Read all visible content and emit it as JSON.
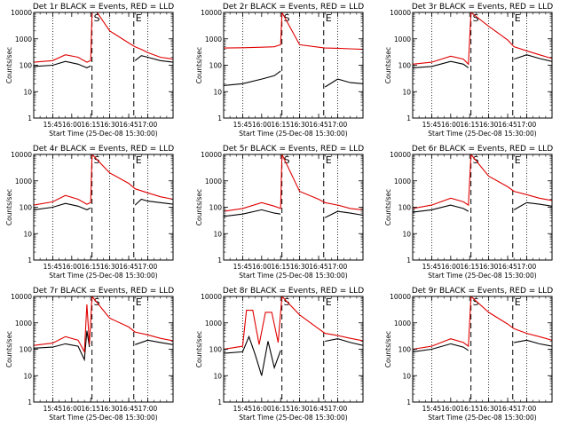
{
  "chart_data": {
    "type": "line",
    "y_scale": "log",
    "ylim": [
      1,
      10000
    ],
    "xlim": [
      "15:30",
      "17:20"
    ],
    "x_tick_labels": [
      "15:45",
      "16:00",
      "16:15",
      "16:30",
      "16:45",
      "17:00"
    ],
    "y_tick_labels": [
      "1",
      "10",
      "100",
      "1000",
      "10000"
    ],
    "ylabel": "Counts/sec",
    "xlabel": "Start Time (25-Dec-08 15:30:00)",
    "colors": {
      "events": "#000000",
      "lld": "#e00000"
    },
    "panels": [
      {
        "title": "Det 1r BLACK = Events, RED = LLD",
        "markers": [
          {
            "label": "S",
            "time": "16:16"
          },
          {
            "label": "E",
            "time": "16:49"
          }
        ],
        "series": [
          {
            "name": "Events",
            "time": [
              "15:30",
              "15:45",
              "15:55",
              "16:05",
              "16:12",
              "16:15",
              "16:16",
              "16:20",
              "16:30",
              "16:45",
              "16:50",
              "16:55",
              "17:00",
              "17:10",
              "17:20"
            ],
            "values": [
              90,
              100,
              140,
              110,
              80,
              95,
              null,
              null,
              null,
              null,
              150,
              230,
              200,
              150,
              130
            ]
          },
          {
            "name": "LLD",
            "time": [
              "15:30",
              "15:45",
              "15:55",
              "16:05",
              "16:12",
              "16:15",
              "16:16",
              "16:20",
              "16:30",
              "16:45",
              "16:50",
              "16:55",
              "17:00",
              "17:10",
              "17:20"
            ],
            "values": [
              130,
              150,
              250,
              200,
              130,
              150,
              10000,
              10000,
              2000,
              700,
              500,
              400,
              300,
              200,
              170
            ]
          }
        ]
      },
      {
        "title": "Det 2r BLACK = Events, RED = LLD",
        "markers": [
          {
            "label": "S",
            "time": "16:16"
          },
          {
            "label": "E",
            "time": "16:49"
          }
        ],
        "series": [
          {
            "name": "Events",
            "time": [
              "15:30",
              "15:45",
              "16:00",
              "16:10",
              "16:15",
              "16:45",
              "16:50",
              "17:00",
              "17:10",
              "17:20"
            ],
            "values": [
              17,
              20,
              30,
              40,
              60,
              null,
              15,
              30,
              22,
              20
            ]
          },
          {
            "name": "LLD",
            "time": [
              "15:30",
              "15:45",
              "16:00",
              "16:10",
              "16:15",
              "16:16",
              "16:30",
              "16:45",
              "16:50",
              "17:00",
              "17:10",
              "17:20"
            ],
            "values": [
              450,
              460,
              480,
              500,
              600,
              10000,
              600,
              480,
              450,
              440,
              420,
              400
            ]
          }
        ]
      },
      {
        "title": "Det 3r BLACK = Events, RED = LLD",
        "markers": [
          {
            "label": "S",
            "time": "16:16"
          },
          {
            "label": "E",
            "time": "16:49"
          }
        ],
        "series": [
          {
            "name": "Events",
            "time": [
              "15:30",
              "15:45",
              "16:00",
              "16:10",
              "16:14",
              "16:20",
              "16:30",
              "16:45",
              "16:50",
              "17:00",
              "17:10",
              "17:20"
            ],
            "values": [
              80,
              90,
              140,
              110,
              80,
              null,
              null,
              null,
              170,
              250,
              180,
              140
            ]
          },
          {
            "name": "LLD",
            "time": [
              "15:30",
              "15:45",
              "16:00",
              "16:10",
              "16:14",
              "16:16",
              "16:30",
              "16:45",
              "16:50",
              "17:00",
              "17:10",
              "17:20"
            ],
            "values": [
              110,
              130,
              220,
              170,
              110,
              10000,
              3000,
              900,
              500,
              350,
              250,
              180
            ]
          }
        ]
      },
      {
        "title": "Det 4r BLACK = Events, RED = LLD",
        "markers": [
          {
            "label": "S",
            "time": "16:16"
          },
          {
            "label": "E",
            "time": "16:49"
          }
        ],
        "series": [
          {
            "name": "Events",
            "time": [
              "15:30",
              "15:45",
              "15:55",
              "16:05",
              "16:12",
              "16:15",
              "16:45",
              "16:50",
              "16:55",
              "17:00",
              "17:10",
              "17:20"
            ],
            "values": [
              80,
              100,
              140,
              110,
              80,
              95,
              null,
              120,
              200,
              170,
              150,
              130
            ]
          },
          {
            "name": "LLD",
            "time": [
              "15:30",
              "15:45",
              "15:55",
              "16:05",
              "16:12",
              "16:15",
              "16:16",
              "16:30",
              "16:45",
              "16:50",
              "17:00",
              "17:10",
              "17:20"
            ],
            "values": [
              120,
              160,
              280,
              200,
              130,
              150,
              10000,
              2000,
              800,
              500,
              350,
              250,
              200
            ]
          }
        ]
      },
      {
        "title": "Det 5r BLACK = Events, RED = LLD",
        "markers": [
          {
            "label": "S",
            "time": "16:16"
          },
          {
            "label": "E",
            "time": "16:49"
          }
        ],
        "series": [
          {
            "name": "Events",
            "time": [
              "15:30",
              "15:45",
              "16:00",
              "16:10",
              "16:15",
              "16:45",
              "16:50",
              "17:00",
              "17:10",
              "17:20"
            ],
            "values": [
              45,
              55,
              80,
              60,
              55,
              null,
              40,
              70,
              60,
              50
            ]
          },
          {
            "name": "LLD",
            "time": [
              "15:30",
              "15:45",
              "16:00",
              "16:10",
              "16:15",
              "16:16",
              "16:30",
              "16:45",
              "16:50",
              "17:00",
              "17:10",
              "17:20"
            ],
            "values": [
              70,
              90,
              150,
              110,
              90,
              10000,
              400,
              200,
              150,
              120,
              90,
              80
            ]
          }
        ]
      },
      {
        "title": "Det 6r BLACK = Events, RED = LLD",
        "markers": [
          {
            "label": "S",
            "time": "16:16"
          },
          {
            "label": "E",
            "time": "16:49"
          }
        ],
        "series": [
          {
            "name": "Events",
            "time": [
              "15:30",
              "15:45",
              "16:00",
              "16:10",
              "16:14",
              "16:45",
              "16:50",
              "17:00",
              "17:10",
              "17:20"
            ],
            "values": [
              65,
              80,
              120,
              90,
              70,
              null,
              80,
              150,
              130,
              110
            ]
          },
          {
            "name": "LLD",
            "time": [
              "15:30",
              "15:45",
              "16:00",
              "16:10",
              "16:14",
              "16:16",
              "16:30",
              "16:45",
              "16:50",
              "17:00",
              "17:10",
              "17:20"
            ],
            "values": [
              90,
              120,
              220,
              160,
              120,
              10000,
              1500,
              600,
              400,
              300,
              220,
              180
            ]
          }
        ]
      },
      {
        "title": "Det 7r BLACK = Events, RED = LLD",
        "markers": [
          {
            "label": "S",
            "time": "16:16"
          },
          {
            "label": "E",
            "time": "16:49"
          }
        ],
        "series": [
          {
            "name": "Events",
            "time": [
              "15:30",
              "15:45",
              "15:55",
              "16:05",
              "16:10",
              "16:12",
              "16:14",
              "16:45",
              "16:50",
              "17:00",
              "17:10",
              "17:20"
            ],
            "values": [
              110,
              120,
              160,
              130,
              40,
              500,
              120,
              null,
              150,
              220,
              180,
              150
            ]
          },
          {
            "name": "LLD",
            "time": [
              "15:30",
              "15:45",
              "15:55",
              "16:05",
              "16:10",
              "16:12",
              "16:14",
              "16:16",
              "16:30",
              "16:45",
              "16:50",
              "17:00",
              "17:10",
              "17:20"
            ],
            "values": [
              140,
              170,
              300,
              220,
              80,
              5000,
              150,
              10000,
              1500,
              700,
              450,
              350,
              260,
              210
            ]
          }
        ]
      },
      {
        "title": "Det 8r BLACK = Events, RED = LLD",
        "markers": [
          {
            "label": "S",
            "time": "16:16"
          },
          {
            "label": "E",
            "time": "16:49"
          }
        ],
        "series": [
          {
            "name": "Events",
            "time": [
              "15:30",
              "15:45",
              "15:50",
              "15:55",
              "16:00",
              "16:05",
              "16:10",
              "16:15",
              "16:45",
              "16:50",
              "17:00",
              "17:10",
              "17:20"
            ],
            "values": [
              70,
              80,
              300,
              60,
              10,
              200,
              20,
              90,
              null,
              200,
              250,
              180,
              140
            ]
          },
          {
            "name": "LLD",
            "time": [
              "15:30",
              "15:45",
              "15:48",
              "15:53",
              "15:58",
              "16:03",
              "16:08",
              "16:13",
              "16:16",
              "16:30",
              "16:45",
              "16:50",
              "17:00",
              "17:10",
              "17:20"
            ],
            "values": [
              100,
              130,
              3000,
              3000,
              150,
              2500,
              2500,
              180,
              10000,
              2000,
              600,
              400,
              330,
              260,
              210
            ]
          }
        ]
      },
      {
        "title": "Det 9r BLACK = Events, RED = LLD",
        "markers": [
          {
            "label": "S",
            "time": "16:16"
          },
          {
            "label": "E",
            "time": "16:49"
          }
        ],
        "series": [
          {
            "name": "Events",
            "time": [
              "15:30",
              "15:45",
              "16:00",
              "16:10",
              "16:14",
              "16:45",
              "16:50",
              "17:00",
              "17:10",
              "17:20"
            ],
            "values": [
              80,
              100,
              160,
              120,
              90,
              null,
              180,
              220,
              160,
              130
            ]
          },
          {
            "name": "LLD",
            "time": [
              "15:30",
              "15:45",
              "16:00",
              "16:10",
              "16:14",
              "16:16",
              "16:30",
              "16:45",
              "16:50",
              "17:00",
              "17:10",
              "17:20"
            ],
            "values": [
              100,
              130,
              250,
              180,
              130,
              10000,
              2500,
              900,
              600,
              400,
              300,
              220
            ]
          }
        ]
      }
    ]
  }
}
